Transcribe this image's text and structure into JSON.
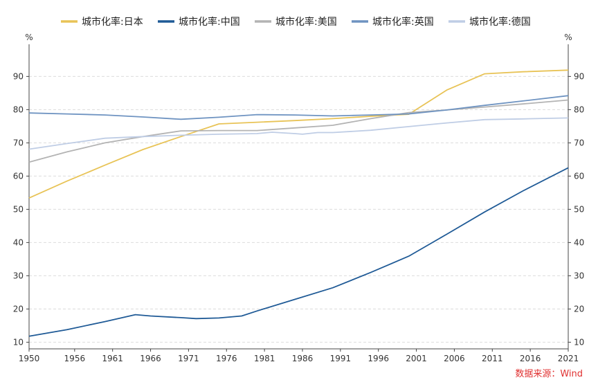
{
  "chart_data": {
    "type": "line",
    "title": "",
    "y_unit_left": "%",
    "y_unit_right": "%",
    "xlim": [
      1950,
      2021
    ],
    "ylim": [
      8,
      98
    ],
    "y_ticks": [
      10,
      20,
      30,
      40,
      50,
      60,
      70,
      80,
      90
    ],
    "x_ticks": [
      1950,
      1956,
      1961,
      1966,
      1971,
      1976,
      1981,
      1986,
      1991,
      1996,
      2001,
      2006,
      2011,
      2016,
      2021
    ],
    "grid": "horizontal-dashed",
    "legend_position": "top",
    "series": [
      {
        "name": "城市化率:日本",
        "color": "#E8C356",
        "points": [
          [
            1950,
            53.4
          ],
          [
            1955,
            58.5
          ],
          [
            1960,
            63.3
          ],
          [
            1965,
            68.0
          ],
          [
            1970,
            71.9
          ],
          [
            1975,
            75.7
          ],
          [
            1980,
            76.2
          ],
          [
            1985,
            76.7
          ],
          [
            1990,
            77.3
          ],
          [
            1995,
            78.0
          ],
          [
            2000,
            78.6
          ],
          [
            2005,
            85.9
          ],
          [
            2010,
            90.8
          ],
          [
            2015,
            91.4
          ],
          [
            2021,
            91.9
          ]
        ]
      },
      {
        "name": "城市化率:中国",
        "color": "#1F5A96",
        "points": [
          [
            1950,
            11.8
          ],
          [
            1955,
            13.8
          ],
          [
            1960,
            16.2
          ],
          [
            1964,
            18.3
          ],
          [
            1966,
            17.9
          ],
          [
            1970,
            17.4
          ],
          [
            1972,
            17.1
          ],
          [
            1975,
            17.3
          ],
          [
            1978,
            17.9
          ],
          [
            1980,
            19.4
          ],
          [
            1985,
            22.9
          ],
          [
            1990,
            26.4
          ],
          [
            1995,
            31.0
          ],
          [
            2000,
            35.9
          ],
          [
            2005,
            42.5
          ],
          [
            2010,
            49.2
          ],
          [
            2015,
            55.5
          ],
          [
            2021,
            62.5
          ]
        ]
      },
      {
        "name": "城市化率:美国",
        "color": "#B3B3B3",
        "points": [
          [
            1950,
            64.2
          ],
          [
            1955,
            67.3
          ],
          [
            1960,
            70.0
          ],
          [
            1965,
            71.9
          ],
          [
            1970,
            73.6
          ],
          [
            1975,
            73.7
          ],
          [
            1980,
            73.7
          ],
          [
            1985,
            74.5
          ],
          [
            1990,
            75.3
          ],
          [
            1995,
            77.3
          ],
          [
            2000,
            79.1
          ],
          [
            2005,
            79.9
          ],
          [
            2010,
            80.8
          ],
          [
            2015,
            81.7
          ],
          [
            2021,
            82.9
          ]
        ]
      },
      {
        "name": "城市化率:英国",
        "color": "#6E93C1",
        "points": [
          [
            1950,
            79.0
          ],
          [
            1955,
            78.7
          ],
          [
            1960,
            78.4
          ],
          [
            1965,
            77.8
          ],
          [
            1970,
            77.1
          ],
          [
            1975,
            77.7
          ],
          [
            1980,
            78.5
          ],
          [
            1985,
            78.4
          ],
          [
            1990,
            78.1
          ],
          [
            1995,
            78.4
          ],
          [
            2000,
            78.7
          ],
          [
            2005,
            79.9
          ],
          [
            2010,
            81.3
          ],
          [
            2015,
            82.6
          ],
          [
            2021,
            84.2
          ]
        ]
      },
      {
        "name": "城市化率:德国",
        "color": "#BFCDE5",
        "points": [
          [
            1950,
            68.1
          ],
          [
            1955,
            69.8
          ],
          [
            1960,
            71.4
          ],
          [
            1965,
            71.9
          ],
          [
            1970,
            72.3
          ],
          [
            1975,
            72.6
          ],
          [
            1980,
            72.8
          ],
          [
            1982,
            73.2
          ],
          [
            1985,
            72.8
          ],
          [
            1986,
            72.6
          ],
          [
            1988,
            73.1
          ],
          [
            1990,
            73.1
          ],
          [
            1995,
            73.8
          ],
          [
            2000,
            74.9
          ],
          [
            2005,
            76.0
          ],
          [
            2010,
            77.0
          ],
          [
            2015,
            77.2
          ],
          [
            2021,
            77.5
          ]
        ]
      }
    ]
  },
  "source_note": "数据来源：Wind"
}
